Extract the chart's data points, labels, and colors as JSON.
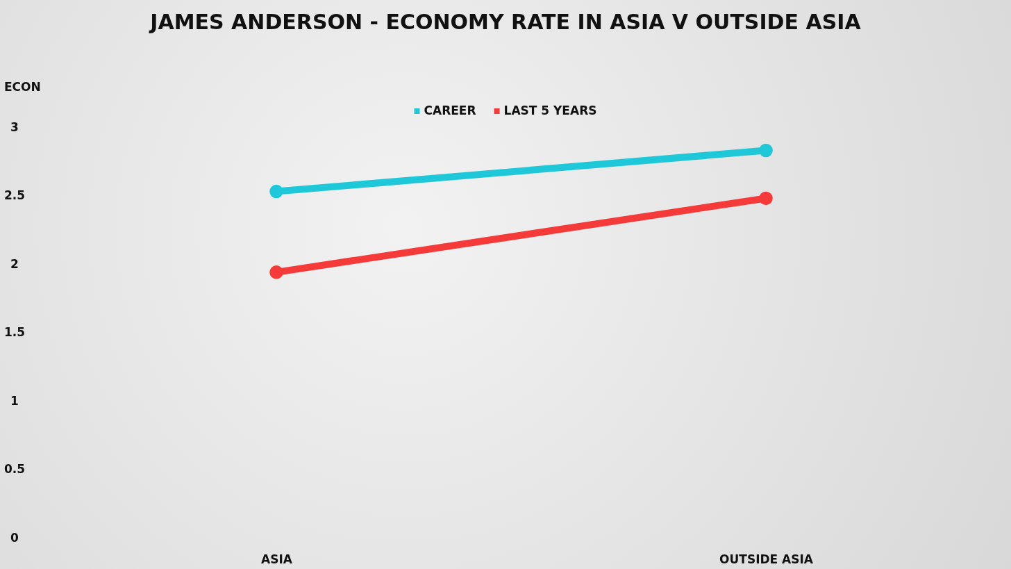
{
  "chart_data": {
    "type": "line",
    "title": "JAMES ANDERSON - ECONOMY RATE IN ASIA V OUTSIDE ASIA",
    "ylabel": "ECON",
    "categories": [
      "ASIA",
      "OUTSIDE ASIA"
    ],
    "series": [
      {
        "name": "CAREER",
        "color": "#1ec8d8",
        "values": [
          2.53,
          2.83
        ]
      },
      {
        "name": "LAST 5 YEARS",
        "color": "#f53a3a",
        "values": [
          1.94,
          2.48
        ]
      }
    ],
    "ylim": [
      0,
      3
    ],
    "yticks": [
      0,
      0.5,
      1,
      1.5,
      2,
      2.5,
      3
    ],
    "grid": false,
    "legend": "top",
    "marker": "circle",
    "line_style": "solid"
  }
}
